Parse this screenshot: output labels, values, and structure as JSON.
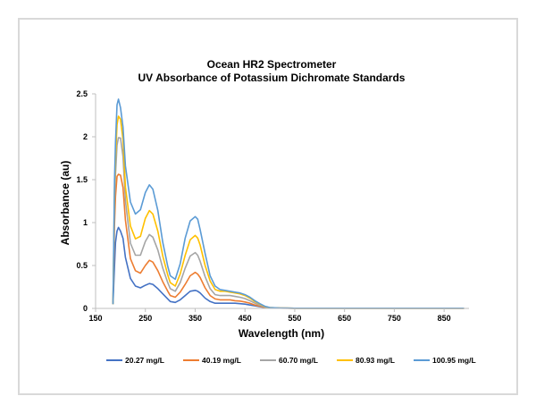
{
  "chart_data": {
    "type": "line",
    "title": "Ocean HR2 Spectrometer",
    "subtitle": "UV Absorbance of Potassium Dichromate Standards",
    "xlabel": "Wavelength (nm)",
    "ylabel": "Absorbance (au)",
    "xlim": [
      150,
      900
    ],
    "ylim": [
      0,
      2.5
    ],
    "x_ticks": [
      "150",
      "250",
      "350",
      "450",
      "550",
      "650",
      "750",
      "850"
    ],
    "y_ticks": [
      "0",
      "0.5",
      "1",
      "1.5",
      "2",
      "2.5"
    ],
    "legend_position": "bottom",
    "grid": false,
    "series": [
      {
        "name": "20.27 mg/L",
        "color": "#4472c4",
        "scale": 0.4,
        "x": [
          185,
          188,
          190,
          193,
          196,
          200,
          205,
          210,
          220,
          230,
          240,
          250,
          258,
          265,
          275,
          285,
          295,
          300,
          310,
          320,
          330,
          340,
          350,
          355,
          360,
          370,
          380,
          390,
          400,
          410,
          420,
          430,
          440,
          450,
          460,
          470,
          480,
          490,
          500,
          520,
          550,
          600,
          700,
          800,
          890
        ],
        "y": [
          0.05,
          0.5,
          0.75,
          0.9,
          0.96,
          0.92,
          0.82,
          0.58,
          0.35,
          0.26,
          0.24,
          0.27,
          0.29,
          0.28,
          0.23,
          0.17,
          0.11,
          0.08,
          0.07,
          0.1,
          0.15,
          0.2,
          0.21,
          0.2,
          0.18,
          0.12,
          0.08,
          0.06,
          0.06,
          0.06,
          0.06,
          0.06,
          0.055,
          0.05,
          0.04,
          0.03,
          0.02,
          0.01,
          0.005,
          0.003,
          0.002,
          0.002,
          0.002,
          0.002,
          0.002
        ]
      },
      {
        "name": "40.19 mg/L",
        "color": "#ed7d31",
        "scale": 0.79,
        "x": [
          185,
          188,
          190,
          193,
          196,
          200,
          205,
          210,
          220,
          230,
          240,
          250,
          258,
          265,
          275,
          285,
          295,
          300,
          310,
          320,
          330,
          340,
          350,
          355,
          360,
          370,
          380,
          390,
          400,
          410,
          420,
          430,
          440,
          450,
          460,
          470,
          480,
          490,
          500,
          520,
          550,
          600,
          700,
          800,
          890
        ],
        "y": [
          0.05,
          0.99,
          1.3,
          1.57,
          1.6,
          1.56,
          1.38,
          0.99,
          0.58,
          0.44,
          0.41,
          0.5,
          0.56,
          0.54,
          0.44,
          0.31,
          0.2,
          0.15,
          0.13,
          0.19,
          0.28,
          0.38,
          0.42,
          0.4,
          0.36,
          0.24,
          0.15,
          0.11,
          0.1,
          0.1,
          0.1,
          0.09,
          0.085,
          0.075,
          0.06,
          0.04,
          0.025,
          0.012,
          0.005,
          0.003,
          0.002,
          0.002,
          0.002,
          0.002,
          0.002
        ]
      },
      {
        "name": "60.70 mg/L",
        "color": "#a5a5a5",
        "scale": 1.0,
        "x": [
          185,
          188,
          190,
          193,
          196,
          200,
          205,
          210,
          220,
          230,
          240,
          250,
          258,
          265,
          275,
          285,
          295,
          300,
          310,
          320,
          330,
          340,
          350,
          355,
          360,
          370,
          380,
          390,
          400,
          410,
          420,
          430,
          440,
          450,
          460,
          470,
          480,
          490,
          500,
          520,
          550,
          600,
          700,
          800,
          890
        ],
        "y": [
          0.05,
          1.25,
          1.6,
          1.95,
          2.0,
          1.95,
          1.72,
          1.24,
          0.76,
          0.62,
          0.62,
          0.78,
          0.86,
          0.83,
          0.68,
          0.47,
          0.3,
          0.23,
          0.2,
          0.3,
          0.47,
          0.61,
          0.65,
          0.62,
          0.55,
          0.37,
          0.23,
          0.16,
          0.15,
          0.15,
          0.15,
          0.14,
          0.13,
          0.115,
          0.09,
          0.06,
          0.035,
          0.017,
          0.007,
          0.004,
          0.002,
          0.002,
          0.002,
          0.002,
          0.002
        ]
      },
      {
        "name": "80.93 mg/L",
        "color": "#ffc000",
        "scale": 1.12,
        "x": [
          185,
          188,
          190,
          193,
          196,
          200,
          205,
          210,
          220,
          230,
          240,
          250,
          258,
          265,
          275,
          285,
          295,
          300,
          310,
          320,
          330,
          340,
          350,
          355,
          360,
          370,
          380,
          390,
          400,
          410,
          420,
          430,
          440,
          450,
          460,
          470,
          480,
          490,
          500,
          520,
          550,
          600,
          700,
          800,
          890
        ],
        "y": [
          0.05,
          1.4,
          1.8,
          2.15,
          2.2,
          2.15,
          1.95,
          1.45,
          0.96,
          0.81,
          0.84,
          1.05,
          1.14,
          1.1,
          0.9,
          0.61,
          0.39,
          0.3,
          0.26,
          0.4,
          0.62,
          0.8,
          0.85,
          0.82,
          0.74,
          0.5,
          0.32,
          0.22,
          0.2,
          0.2,
          0.19,
          0.18,
          0.17,
          0.15,
          0.12,
          0.08,
          0.05,
          0.022,
          0.009,
          0.004,
          0.002,
          0.002,
          0.002,
          0.002,
          0.002
        ]
      },
      {
        "name": "100.95 mg/L",
        "color": "#5b9bd5",
        "scale": 1.2,
        "x": [
          185,
          188,
          190,
          193,
          196,
          200,
          205,
          210,
          220,
          230,
          240,
          250,
          258,
          265,
          275,
          285,
          295,
          300,
          310,
          320,
          330,
          340,
          350,
          355,
          360,
          370,
          380,
          390,
          400,
          410,
          420,
          430,
          440,
          450,
          460,
          470,
          480,
          490,
          500,
          520,
          550,
          600,
          700,
          800,
          890
        ],
        "y": [
          0.05,
          1.5,
          1.95,
          2.33,
          2.38,
          2.32,
          2.15,
          1.72,
          1.24,
          1.1,
          1.15,
          1.35,
          1.44,
          1.39,
          1.14,
          0.77,
          0.49,
          0.38,
          0.34,
          0.52,
          0.82,
          1.02,
          1.07,
          1.04,
          0.92,
          0.64,
          0.38,
          0.26,
          0.22,
          0.21,
          0.2,
          0.19,
          0.18,
          0.16,
          0.13,
          0.09,
          0.055,
          0.025,
          0.01,
          0.004,
          0.002,
          0.002,
          0.002,
          0.002,
          0.002
        ]
      }
    ]
  }
}
